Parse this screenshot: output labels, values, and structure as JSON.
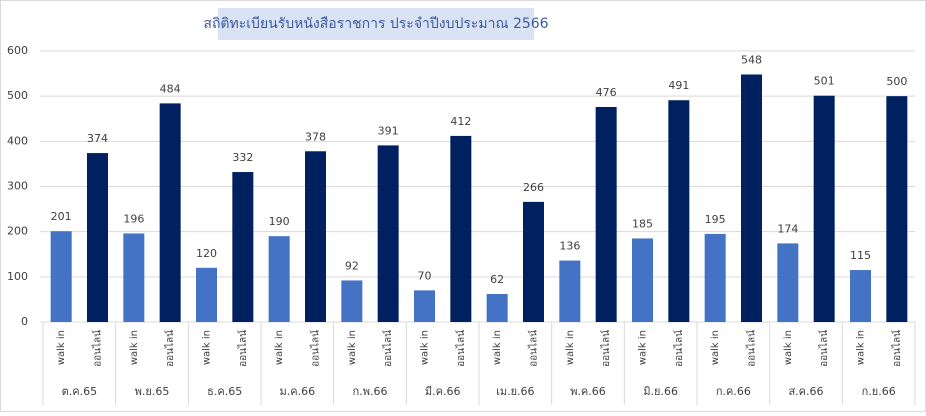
{
  "chart_data": {
    "type": "bar",
    "title": "สถิติทะเบียนรับหนังสือราชการ ประจำปีงบประมาณ 2566",
    "categories": [
      "ต.ค.65",
      "พ.ย.65",
      "ธ.ค.65",
      "ม.ค.66",
      "ก.พ.66",
      "มี.ค.66",
      "เม.ย.66",
      "พ.ค.66",
      "มิ.ย.66",
      "ก.ค.66",
      "ส.ค.66",
      "ก.ย.66"
    ],
    "series": [
      {
        "name": "walk in",
        "color": "#4472c4",
        "values": [
          201,
          196,
          120,
          190,
          92,
          70,
          62,
          136,
          185,
          195,
          174,
          115
        ]
      },
      {
        "name": "ออนไลน์",
        "color": "#002060",
        "values": [
          374,
          484,
          332,
          378,
          391,
          412,
          266,
          476,
          491,
          548,
          501,
          500
        ]
      }
    ],
    "ylim": [
      0,
      600
    ],
    "yticks": [
      0,
      100,
      200,
      300,
      400,
      500,
      600
    ],
    "grid": true
  }
}
